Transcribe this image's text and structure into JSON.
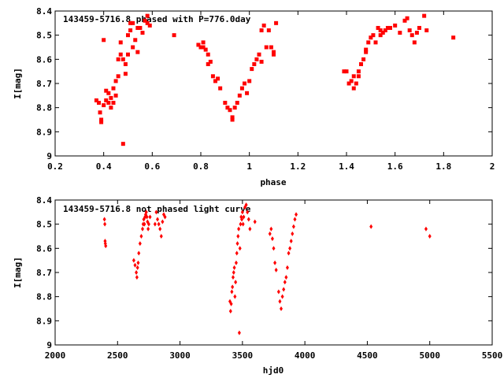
{
  "chart_data": [
    {
      "type": "scatter",
      "title": "143459-5716.8 phased with P=776.0day",
      "xlabel": "phase",
      "ylabel": "I[mag]",
      "xlim": [
        0.2,
        2
      ],
      "ylim": [
        8.4,
        9
      ],
      "y_inverted": true,
      "grid": false,
      "marker": "square",
      "color": "#ff0000",
      "xticks": [
        0.2,
        0.4,
        0.6,
        0.8,
        1,
        1.2,
        1.4,
        1.6,
        1.8,
        2
      ],
      "yticks": [
        8.4,
        8.5,
        8.6,
        8.7,
        8.8,
        8.9,
        9
      ],
      "xtick_labels": [
        "0.2",
        "0.4",
        "0.6",
        "0.8",
        "1",
        "1.2",
        "1.4",
        "1.6",
        "1.8",
        "2"
      ],
      "ytick_labels": [
        "8.4",
        "8.5",
        "8.6",
        "8.7",
        "8.8",
        "8.9",
        "9"
      ],
      "x": [
        0.37,
        0.38,
        0.385,
        0.39,
        0.39,
        0.4,
        0.4,
        0.41,
        0.41,
        0.42,
        0.42,
        0.43,
        0.43,
        0.44,
        0.44,
        0.45,
        0.45,
        0.46,
        0.46,
        0.47,
        0.47,
        0.48,
        0.48,
        0.49,
        0.49,
        0.5,
        0.5,
        0.51,
        0.51,
        0.52,
        0.52,
        0.53,
        0.54,
        0.54,
        0.55,
        0.56,
        0.57,
        0.58,
        0.58,
        0.59,
        0.69,
        0.79,
        0.8,
        0.81,
        0.81,
        0.82,
        0.83,
        0.83,
        0.84,
        0.85,
        0.86,
        0.87,
        0.88,
        0.9,
        0.91,
        0.92,
        0.93,
        0.93,
        0.94,
        0.95,
        0.96,
        0.97,
        0.98,
        0.99,
        1.0,
        1.01,
        1.02,
        1.03,
        1.04,
        1.05,
        1.05,
        1.06,
        1.07,
        1.08,
        1.09,
        1.1,
        1.1,
        1.11,
        1.39,
        1.4,
        1.41,
        1.42,
        1.43,
        1.43,
        1.44,
        1.45,
        1.45,
        1.46,
        1.47,
        1.48,
        1.48,
        1.49,
        1.5,
        1.51,
        1.52,
        1.53,
        1.54,
        1.54,
        1.55,
        1.56,
        1.57,
        1.58,
        1.6,
        1.62,
        1.64,
        1.65,
        1.66,
        1.67,
        1.68,
        1.69,
        1.7,
        1.72,
        1.73,
        1.84
      ],
      "y": [
        8.77,
        8.78,
        8.82,
        8.85,
        8.86,
        8.52,
        8.79,
        8.73,
        8.77,
        8.74,
        8.78,
        8.76,
        8.8,
        8.72,
        8.78,
        8.69,
        8.75,
        8.6,
        8.67,
        8.58,
        8.53,
        8.6,
        8.95,
        8.62,
        8.66,
        8.5,
        8.58,
        8.45,
        8.48,
        8.45,
        8.55,
        8.52,
        8.57,
        8.47,
        8.47,
        8.49,
        8.44,
        8.42,
        8.45,
        8.46,
        8.5,
        8.54,
        8.55,
        8.55,
        8.53,
        8.56,
        8.58,
        8.62,
        8.61,
        8.67,
        8.69,
        8.68,
        8.72,
        8.78,
        8.8,
        8.81,
        8.84,
        8.85,
        8.8,
        8.78,
        8.75,
        8.72,
        8.7,
        8.74,
        8.69,
        8.64,
        8.62,
        8.6,
        8.58,
        8.61,
        8.48,
        8.46,
        8.55,
        8.48,
        8.55,
        8.57,
        8.58,
        8.45,
        8.65,
        8.65,
        8.7,
        8.69,
        8.72,
        8.67,
        8.7,
        8.65,
        8.67,
        8.62,
        8.6,
        8.56,
        8.57,
        8.53,
        8.51,
        8.5,
        8.53,
        8.47,
        8.48,
        8.5,
        8.49,
        8.48,
        8.47,
        8.47,
        8.46,
        8.49,
        8.44,
        8.43,
        8.48,
        8.5,
        8.53,
        8.49,
        8.47,
        8.42,
        8.48,
        8.51
      ]
    },
    {
      "type": "scatter",
      "title": "143459-5716.8 not phased light curve",
      "xlabel": "hjd0",
      "ylabel": "I[mag]",
      "xlim": [
        2000,
        5500
      ],
      "ylim": [
        8.4,
        9
      ],
      "y_inverted": true,
      "grid": false,
      "marker": "diamond",
      "color": "#ff0000",
      "xticks": [
        2000,
        2500,
        3000,
        3500,
        4000,
        4500,
        5000,
        5500
      ],
      "yticks": [
        8.4,
        8.5,
        8.6,
        8.7,
        8.8,
        8.9,
        9
      ],
      "xtick_labels": [
        "2000",
        "2500",
        "3000",
        "3500",
        "4000",
        "4500",
        "5000",
        "5500"
      ],
      "ytick_labels": [
        "8.4",
        "8.5",
        "8.6",
        "8.7",
        "8.8",
        "8.9",
        "9"
      ],
      "x": [
        2395,
        2398,
        2400,
        2402,
        2405,
        2630,
        2640,
        2650,
        2655,
        2660,
        2665,
        2670,
        2680,
        2690,
        2700,
        2705,
        2710,
        2715,
        2720,
        2725,
        2730,
        2735,
        2740,
        2745,
        2750,
        2760,
        2800,
        2810,
        2820,
        2830,
        2840,
        2850,
        2860,
        2870,
        2880,
        3400,
        3405,
        3410,
        3415,
        3420,
        3425,
        3430,
        3435,
        3440,
        3445,
        3450,
        3455,
        3460,
        3465,
        3470,
        3475,
        3480,
        3485,
        3490,
        3495,
        3500,
        3505,
        3510,
        3520,
        3530,
        3540,
        3550,
        3560,
        3600,
        3720,
        3730,
        3740,
        3750,
        3760,
        3770,
        3790,
        3800,
        3810,
        3820,
        3830,
        3840,
        3850,
        3860,
        3870,
        3880,
        3890,
        3900,
        3910,
        3920,
        3930,
        4530,
        4970,
        5000
      ],
      "y": [
        8.48,
        8.5,
        8.57,
        8.58,
        8.59,
        8.65,
        8.67,
        8.7,
        8.72,
        8.68,
        8.66,
        8.62,
        8.58,
        8.55,
        8.52,
        8.5,
        8.48,
        8.5,
        8.47,
        8.46,
        8.45,
        8.47,
        8.49,
        8.52,
        8.5,
        8.47,
        8.5,
        8.45,
        8.48,
        8.5,
        8.52,
        8.55,
        8.49,
        8.46,
        8.47,
        8.82,
        8.86,
        8.83,
        8.78,
        8.76,
        8.72,
        8.7,
        8.68,
        8.8,
        8.74,
        8.66,
        8.62,
        8.58,
        8.55,
        8.52,
        8.95,
        8.6,
        8.5,
        8.47,
        8.48,
        8.45,
        8.5,
        8.47,
        8.43,
        8.42,
        8.45,
        8.48,
        8.52,
        8.49,
        8.54,
        8.52,
        8.56,
        8.6,
        8.66,
        8.69,
        8.78,
        8.82,
        8.85,
        8.8,
        8.77,
        8.74,
        8.72,
        8.68,
        8.62,
        8.6,
        8.57,
        8.54,
        8.51,
        8.48,
        8.46,
        8.51,
        8.52,
        8.55
      ]
    }
  ]
}
